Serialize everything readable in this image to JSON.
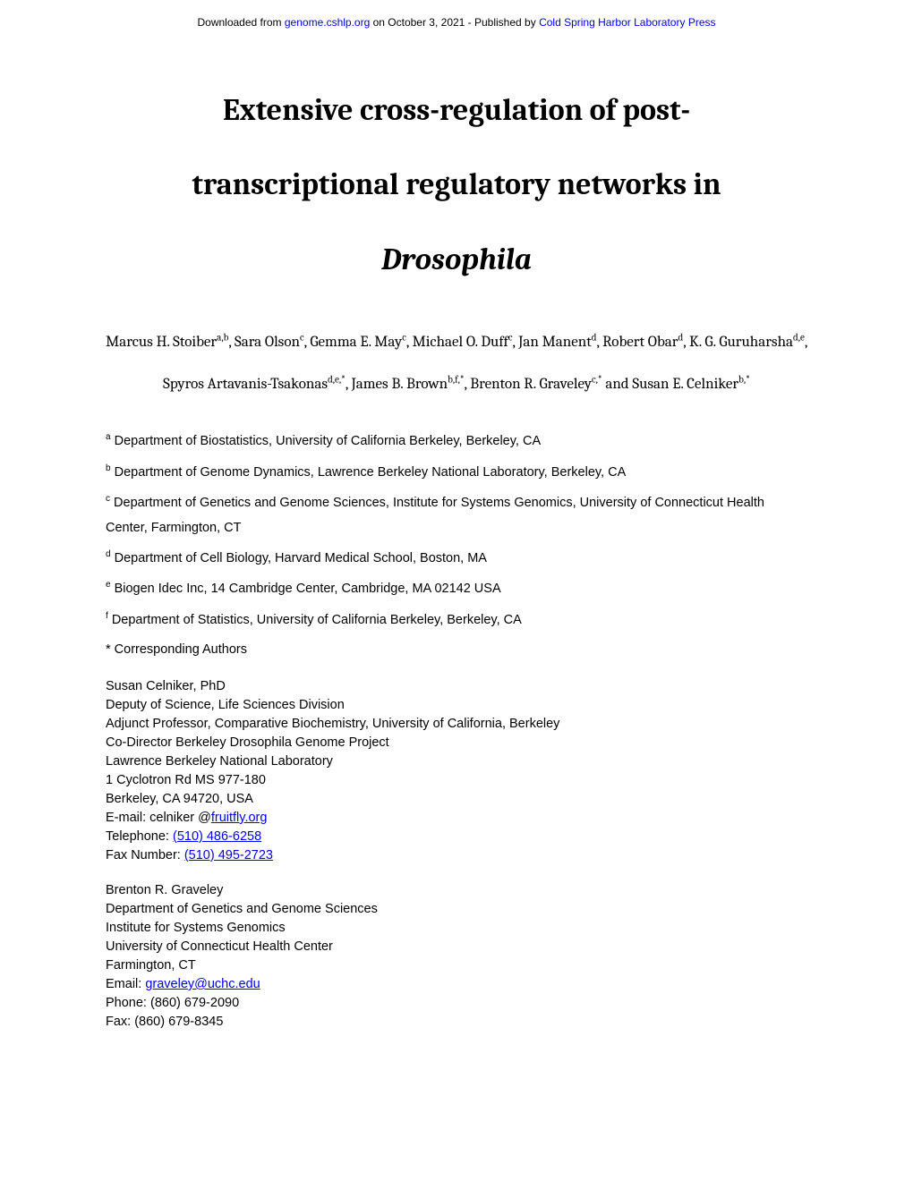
{
  "header": {
    "prefix": "Downloaded from ",
    "link1_text": "genome.cshlp.org",
    "middle": " on October 3, 2021 - Published by ",
    "link2_text": "Cold Spring Harbor Laboratory Press"
  },
  "title": {
    "line1": "Extensive cross-regulation of post-",
    "line2": "transcriptional regulatory networks in",
    "line3_italic": "Drosophila"
  },
  "authors": {
    "a1_name": "Marcus H. Stoiber",
    "a1_sup": "a,b",
    "a2_name": "Sara Olson",
    "a2_sup": "c",
    "a3_name": "Gemma E. May",
    "a3_sup": "c",
    "a4_name": "Michael O. Duff",
    "a4_sup": "c",
    "a5_name": "Jan Manent",
    "a5_sup": "d",
    "a6_name": "Robert Obar",
    "a6_sup": "d",
    "a7_name": "K. G. Guruharsha",
    "a7_sup": "d,e",
    "a8_name": "Spyros Artavanis-Tsakonas",
    "a8_sup": "d,e,*",
    "a9_name": "James B. Brown",
    "a9_sup": "b,f,*",
    "a10_name": "Brenton R. Graveley",
    "a10_sup": "c,*",
    "and": " and ",
    "a11_name": "Susan E. Celniker",
    "a11_sup": "b,*"
  },
  "affiliations": {
    "a": "Department of Biostatistics, University of California Berkeley, Berkeley, CA",
    "b": "Department of Genome Dynamics, Lawrence Berkeley National Laboratory, Berkeley, CA",
    "c": "Department of Genetics and Genome Sciences, Institute for Systems Genomics, University of Connecticut Health Center, Farmington, CT",
    "d": "Department of Cell Biology, Harvard Medical School, Boston, MA",
    "e": "Biogen Idec Inc, 14 Cambridge Center, Cambridge, MA 02142 USA",
    "f": "Department of Statistics, University of California Berkeley, Berkeley, CA",
    "star": "* Corresponding Authors"
  },
  "contact1": {
    "name": "Susan Celniker, PhD",
    "l1": "Deputy of Science, Life Sciences Division",
    "l2": "Adjunct Professor, Comparative Biochemistry, University of California, Berkeley",
    "l3": "Co-Director Berkeley Drosophila Genome Project",
    "l4": "Lawrence Berkeley National Laboratory",
    "l5": "1 Cyclotron Rd MS 977-180",
    "l6": "Berkeley, CA 94720, USA",
    "email_prefix": "E-mail: celniker @",
    "email_link": "fruitfly.org",
    "tel_prefix": "Telephone: ",
    "tel_link": "(510) 486-6258",
    "fax_prefix": "Fax Number: ",
    "fax_link": "(510) 495-2723"
  },
  "contact2": {
    "name": "Brenton R. Graveley",
    "l1": "Department of Genetics and Genome Sciences",
    "l2": "Institute for Systems Genomics",
    "l3": "University of Connecticut Health Center",
    "l4": "Farmington, CT",
    "email_prefix": "Email: ",
    "email_link": "graveley@uchc.edu",
    "phone": "Phone: (860) 679-2090",
    "fax": "Fax: (860) 679-8345"
  }
}
